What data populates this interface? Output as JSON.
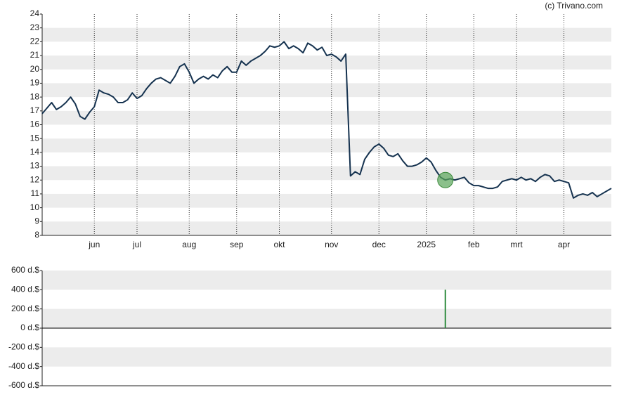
{
  "chart_data": [
    {
      "type": "line",
      "credit": "(c) Trivano.com",
      "categories": [
        null,
        null,
        null,
        null,
        null,
        null,
        null,
        null,
        null,
        null,
        null,
        "jun",
        null,
        null,
        null,
        null,
        null,
        null,
        null,
        null,
        "jul",
        null,
        null,
        null,
        null,
        null,
        null,
        null,
        null,
        null,
        null,
        "aug",
        null,
        null,
        null,
        null,
        null,
        null,
        null,
        null,
        null,
        "sep",
        null,
        null,
        null,
        null,
        null,
        null,
        null,
        null,
        "okt",
        null,
        null,
        null,
        null,
        null,
        null,
        null,
        null,
        null,
        null,
        "nov",
        null,
        null,
        null,
        null,
        null,
        null,
        null,
        null,
        null,
        "dec",
        null,
        null,
        null,
        null,
        null,
        null,
        null,
        null,
        null,
        "2025",
        null,
        null,
        null,
        null,
        null,
        null,
        null,
        null,
        null,
        "feb",
        null,
        null,
        null,
        null,
        null,
        null,
        null,
        null,
        "mrt",
        null,
        null,
        null,
        null,
        null,
        null,
        null,
        null,
        null,
        "apr",
        null,
        null,
        null,
        null,
        null,
        null,
        null,
        null,
        null,
        null
      ],
      "series": [
        {
          "color": "#15324f",
          "values": [
            16.8,
            17.2,
            17.6,
            17.1,
            17.3,
            17.6,
            18.0,
            17.5,
            16.6,
            16.4,
            16.9,
            17.3,
            18.5,
            18.3,
            18.2,
            18.0,
            17.6,
            17.6,
            17.8,
            18.3,
            17.9,
            18.1,
            18.6,
            19.0,
            19.3,
            19.4,
            19.2,
            19.0,
            19.5,
            20.2,
            20.4,
            19.8,
            19.0,
            19.3,
            19.5,
            19.3,
            19.6,
            19.4,
            19.9,
            20.2,
            19.8,
            19.8,
            20.6,
            20.3,
            20.6,
            20.8,
            21.0,
            21.3,
            21.7,
            21.6,
            21.7,
            22.0,
            21.5,
            21.7,
            21.5,
            21.2,
            21.9,
            21.7,
            21.4,
            21.6,
            21.0,
            21.1,
            20.9,
            20.6,
            21.1,
            12.3,
            12.6,
            12.4,
            13.5,
            14.0,
            14.4,
            14.6,
            14.3,
            13.8,
            13.7,
            13.9,
            13.4,
            13.0,
            13.0,
            13.1,
            13.3,
            13.6,
            13.3,
            12.7,
            12.2,
            12.0,
            12.1,
            12.0,
            12.1,
            12.2,
            11.8,
            11.6,
            11.6,
            11.5,
            11.4,
            11.4,
            11.5,
            11.9,
            12.0,
            12.1,
            12.0,
            12.2,
            12.0,
            12.1,
            11.9,
            12.2,
            12.4,
            12.3,
            11.9,
            12.0,
            11.9,
            11.8,
            10.7,
            10.9,
            11.0,
            10.9,
            11.1,
            10.8,
            11.0,
            11.2,
            11.4
          ]
        }
      ],
      "ylim": [
        8,
        24
      ],
      "yticks": [
        8,
        9,
        10,
        11,
        12,
        13,
        14,
        15,
        16,
        17,
        18,
        19,
        20,
        21,
        22,
        23,
        24
      ],
      "first_band_shaded": false,
      "marker_color": "#5aa55a"
    },
    {
      "type": "bar",
      "color": "#2e8b3e",
      "values": [
        null,
        null,
        null,
        null,
        null,
        null,
        null,
        null,
        null,
        null,
        null,
        null,
        null,
        null,
        null,
        null,
        null,
        null,
        null,
        null,
        null,
        null,
        null,
        null,
        null,
        null,
        null,
        null,
        null,
        null,
        null,
        null,
        null,
        null,
        null,
        null,
        null,
        null,
        null,
        null,
        null,
        null,
        null,
        null,
        null,
        null,
        null,
        null,
        null,
        null,
        null,
        null,
        null,
        null,
        null,
        null,
        null,
        null,
        null,
        null,
        null,
        null,
        null,
        null,
        null,
        null,
        null,
        null,
        null,
        null,
        null,
        null,
        null,
        null,
        null,
        null,
        null,
        null,
        null,
        null,
        null,
        null,
        null,
        null,
        null,
        400,
        null,
        null,
        null,
        null,
        null,
        null,
        null,
        null,
        null,
        null,
        null,
        null,
        null,
        null,
        null,
        null,
        null,
        null,
        null,
        null,
        null,
        null,
        null,
        null,
        null,
        null,
        null,
        null,
        null,
        null,
        null,
        null,
        null,
        null,
        null
      ],
      "ylim": [
        -600,
        600
      ],
      "yticks": [
        {
          "value": -600,
          "label": "-600 d.$"
        },
        {
          "value": -400,
          "label": "-400 d.$"
        },
        {
          "value": -200,
          "label": "-200 d.$"
        },
        {
          "value": 0,
          "label": "0 d.$"
        },
        {
          "value": 200,
          "label": "200 d.$"
        },
        {
          "value": 400,
          "label": "400 d.$"
        },
        {
          "value": 600,
          "label": "600 d.$"
        }
      ],
      "first_band_shaded": true
    }
  ]
}
